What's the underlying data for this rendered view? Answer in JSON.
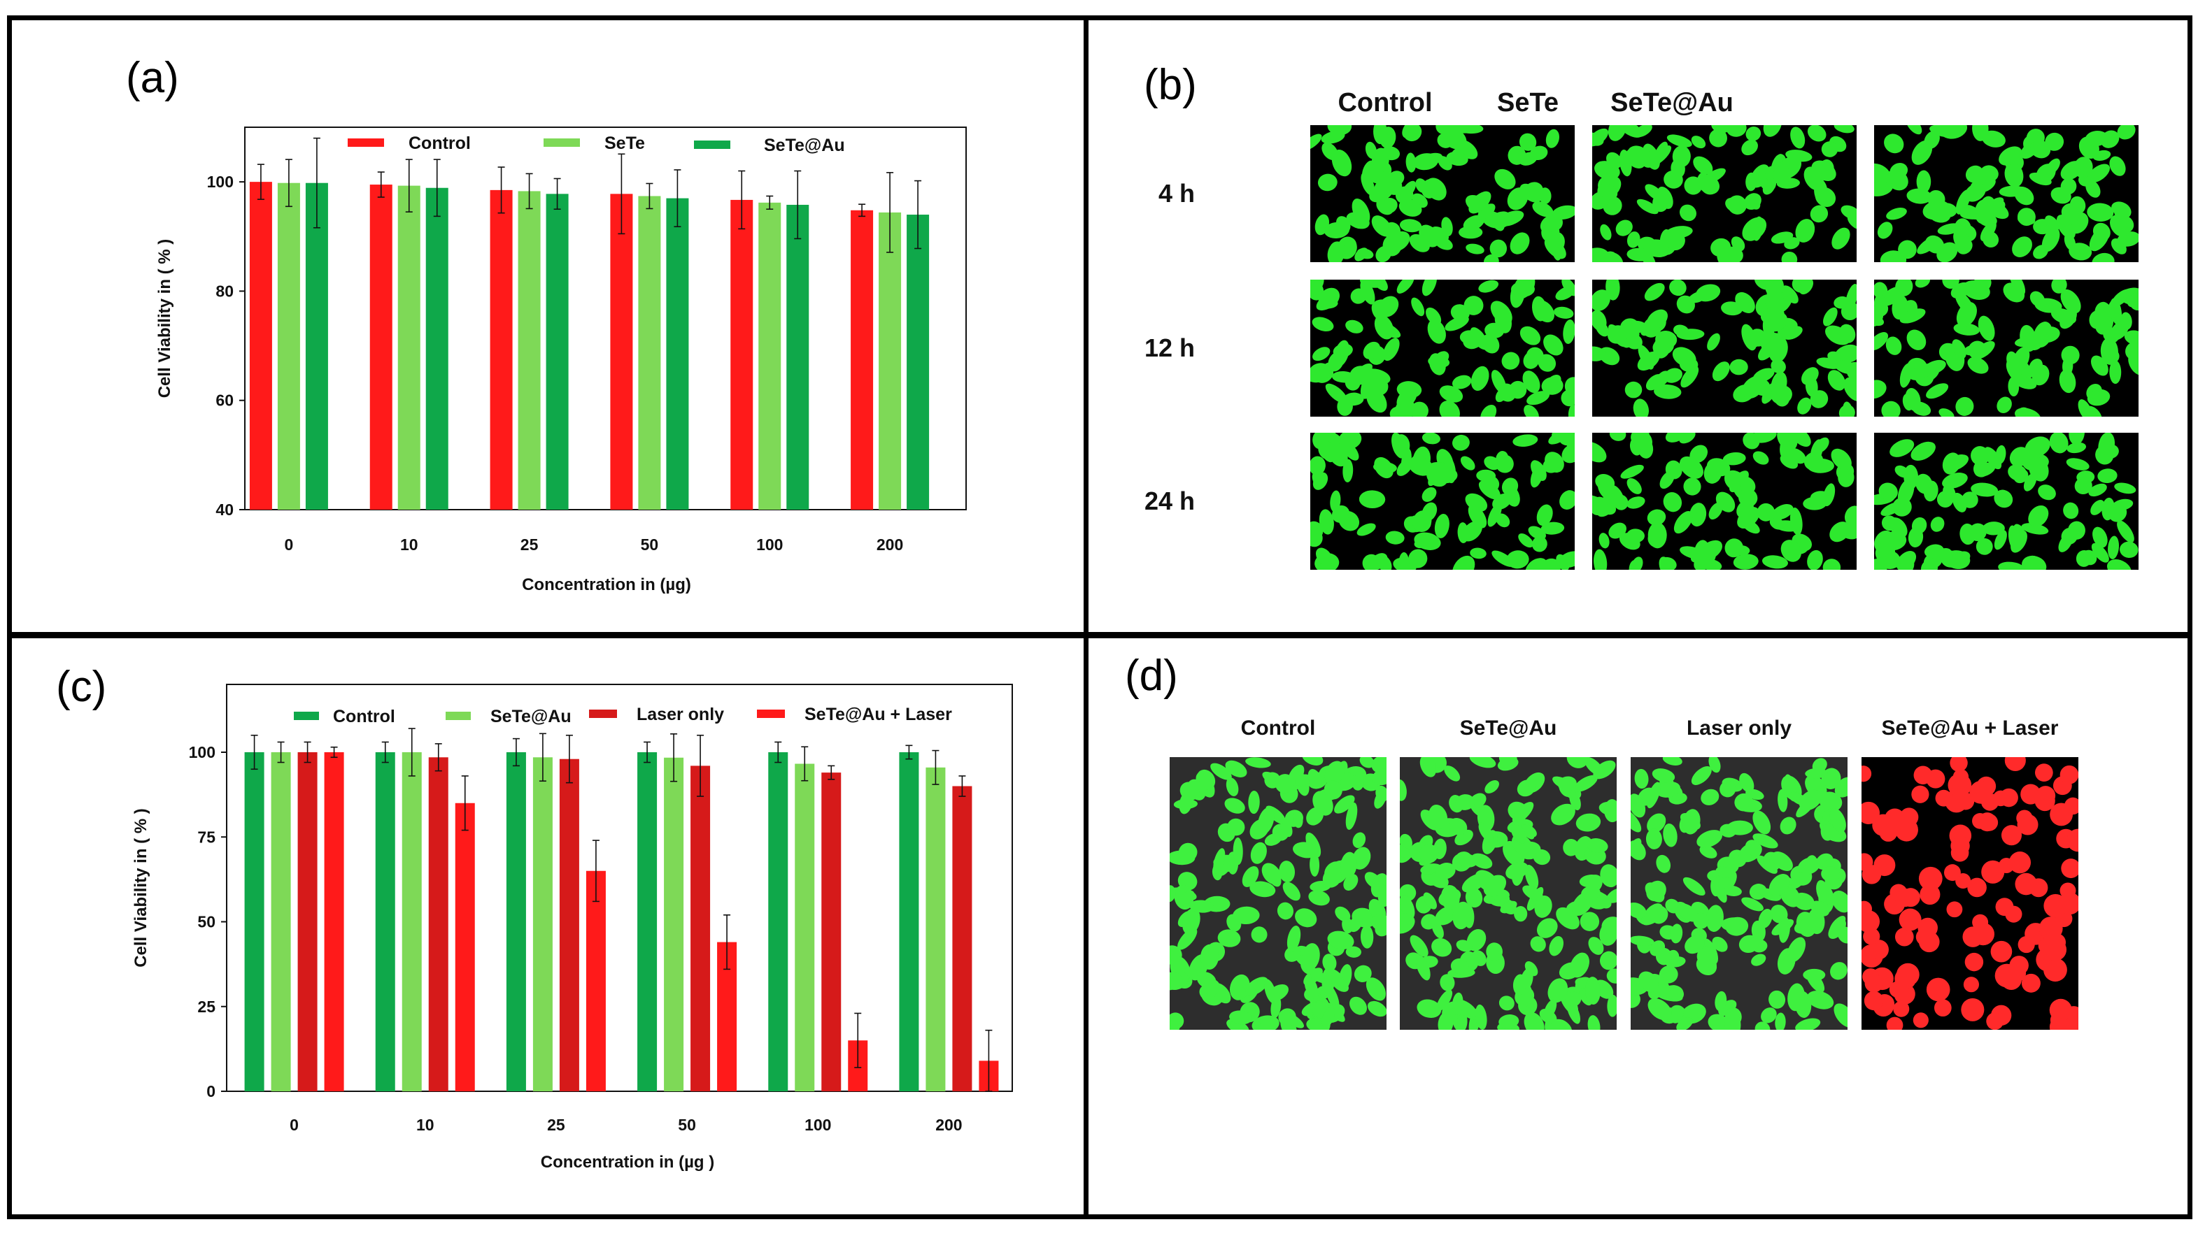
{
  "chart_data": [
    {
      "panel": "(a)",
      "type": "bar",
      "xlabel": "Concentration in (µg)",
      "ylabel": "Cell Viability in ( % )",
      "ylim": [
        40,
        110
      ],
      "yticks": [
        40,
        60,
        80,
        100
      ],
      "categories": [
        "0",
        "10",
        "25",
        "50",
        "100",
        "200"
      ],
      "legend_position": "top",
      "error_bars": true,
      "series": [
        {
          "name": "Control",
          "color": "#ff1a1a",
          "values": [
            100,
            99.5,
            98.5,
            97.8,
            96.7,
            94.8
          ],
          "errors": [
            3.2,
            2.3,
            4.2,
            7.3,
            5.3,
            1.1
          ]
        },
        {
          "name": "SeTe",
          "color": "#7ed957",
          "values": [
            99.8,
            99.3,
            98.3,
            97.4,
            96.2,
            94.4
          ],
          "errors": [
            4.3,
            4.8,
            3.2,
            2.3,
            1.2,
            7.3
          ]
        },
        {
          "name": "SeTe@Au",
          "color": "#0fa84a",
          "values": [
            99.8,
            98.9,
            97.8,
            97.0,
            95.8,
            94.0
          ],
          "errors": [
            8.2,
            5.2,
            2.8,
            5.2,
            6.2,
            6.2
          ]
        }
      ]
    },
    {
      "panel": "(c)",
      "type": "bar",
      "xlabel": "Concentration in (µg )",
      "ylabel": "Cell Viability in ( % )",
      "ylim": [
        0,
        120
      ],
      "yticks": [
        0,
        25,
        50,
        75,
        100
      ],
      "categories": [
        "0",
        "10",
        "25",
        "50",
        "100",
        "200"
      ],
      "legend_position": "top",
      "error_bars": true,
      "series": [
        {
          "name": "Control",
          "color": "#0fa84a",
          "values": [
            100,
            100,
            100,
            100,
            100,
            100
          ],
          "errors": [
            5,
            3,
            4,
            3,
            3,
            2
          ]
        },
        {
          "name": "SeTe@Au",
          "color": "#7ed957",
          "values": [
            100,
            100,
            98.5,
            98.4,
            96.6,
            95.5
          ],
          "errors": [
            3,
            7,
            7,
            7,
            5,
            5
          ]
        },
        {
          "name": "Laser only",
          "color": "#d61a1a",
          "values": [
            100,
            98.5,
            98,
            96,
            94,
            90
          ],
          "errors": [
            3,
            4,
            7,
            9,
            2,
            3
          ]
        },
        {
          "name": "SeTe@Au + Laser",
          "color": "#ff1a1a",
          "values": [
            100,
            85,
            65,
            44,
            15,
            9
          ],
          "errors": [
            1.5,
            8,
            9,
            8,
            8,
            9
          ]
        }
      ]
    }
  ],
  "panel_labels": {
    "a": "(a)",
    "b": "(b)",
    "c": "(c)",
    "d": "(d)"
  },
  "panel_b": {
    "columns": [
      "Control",
      "SeTe",
      "SeTe@Au"
    ],
    "rows": [
      "4 h",
      "12 h",
      "24 h"
    ],
    "cell_color": "#2ee82e"
  },
  "panel_d": {
    "columns": [
      "Control",
      "SeTe@Au",
      "Laser only",
      "SeTe@Au + Laser"
    ],
    "cell_colors": [
      "#3ff03f",
      "#3ff03f",
      "#3ff03f",
      "#ff2a2a"
    ]
  }
}
